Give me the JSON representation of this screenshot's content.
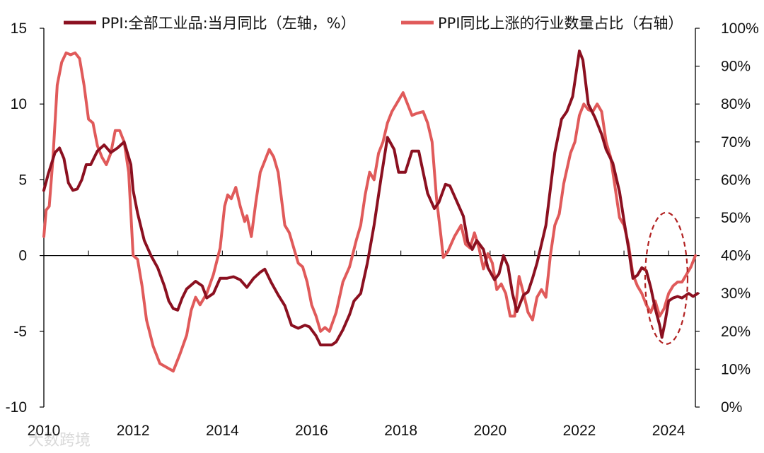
{
  "chart_data": {
    "type": "line",
    "title": "",
    "colors": {
      "series_a": "#8b1020",
      "series_b": "#e05a5a",
      "axis": "#000000",
      "ellipse": "#b22222"
    },
    "x_range": [
      2010,
      2024.6
    ],
    "x_ticks": [
      "2010",
      "2012",
      "2014",
      "2016",
      "2018",
      "2020",
      "2022",
      "2024"
    ],
    "y_left": {
      "range": [
        -10,
        15
      ],
      "ticks": [
        "15",
        "10",
        "5",
        "0",
        "-5",
        "-10"
      ]
    },
    "y_right": {
      "range": [
        0,
        100
      ],
      "ticks": [
        "100%",
        "90%",
        "80%",
        "70%",
        "60%",
        "50%",
        "40%",
        "30%",
        "20%",
        "10%",
        "0%"
      ]
    },
    "annotation": {
      "type": "dashed-ellipse",
      "center_x": 2023.95,
      "center_y_left": -1.5
    },
    "watermark": "大数跨境",
    "series": [
      {
        "name": "PPI:全部工业品:当月同比（左轴，%）",
        "axis": "left",
        "points": [
          [
            2010.0,
            4.3
          ],
          [
            2010.1,
            5.4
          ],
          [
            2010.25,
            6.8
          ],
          [
            2010.35,
            7.1
          ],
          [
            2010.45,
            6.4
          ],
          [
            2010.55,
            4.8
          ],
          [
            2010.65,
            4.3
          ],
          [
            2010.75,
            4.4
          ],
          [
            2010.85,
            5.0
          ],
          [
            2010.95,
            6.0
          ],
          [
            2011.05,
            6.0
          ],
          [
            2011.2,
            6.9
          ],
          [
            2011.35,
            7.3
          ],
          [
            2011.5,
            6.8
          ],
          [
            2011.65,
            7.1
          ],
          [
            2011.8,
            7.5
          ],
          [
            2011.95,
            6.0
          ],
          [
            2012.0,
            4.3
          ],
          [
            2012.1,
            2.8
          ],
          [
            2012.25,
            1.0
          ],
          [
            2012.4,
            0.0
          ],
          [
            2012.55,
            -0.8
          ],
          [
            2012.7,
            -2.0
          ],
          [
            2012.8,
            -3.0
          ],
          [
            2012.9,
            -3.5
          ],
          [
            2013.0,
            -3.6
          ],
          [
            2013.1,
            -2.8
          ],
          [
            2013.2,
            -2.2
          ],
          [
            2013.4,
            -1.7
          ],
          [
            2013.55,
            -2.0
          ],
          [
            2013.65,
            -2.8
          ],
          [
            2013.8,
            -2.5
          ],
          [
            2013.95,
            -1.5
          ],
          [
            2014.1,
            -1.5
          ],
          [
            2014.25,
            -1.4
          ],
          [
            2014.4,
            -1.6
          ],
          [
            2014.55,
            -2.1
          ],
          [
            2014.7,
            -1.5
          ],
          [
            2014.85,
            -1.1
          ],
          [
            2014.95,
            -0.9
          ],
          [
            2015.1,
            -1.8
          ],
          [
            2015.25,
            -2.6
          ],
          [
            2015.4,
            -3.3
          ],
          [
            2015.55,
            -4.6
          ],
          [
            2015.7,
            -4.8
          ],
          [
            2015.85,
            -4.6
          ],
          [
            2015.95,
            -4.7
          ],
          [
            2016.1,
            -5.3
          ],
          [
            2016.2,
            -5.9
          ],
          [
            2016.45,
            -5.9
          ],
          [
            2016.55,
            -5.7
          ],
          [
            2016.7,
            -4.9
          ],
          [
            2016.85,
            -3.9
          ],
          [
            2016.95,
            -3.0
          ],
          [
            2017.1,
            -2.5
          ],
          [
            2017.25,
            -0.5
          ],
          [
            2017.4,
            2.0
          ],
          [
            2017.55,
            5.0
          ],
          [
            2017.7,
            7.8
          ],
          [
            2017.85,
            7.0
          ],
          [
            2017.95,
            5.5
          ],
          [
            2018.1,
            5.5
          ],
          [
            2018.25,
            6.9
          ],
          [
            2018.4,
            6.9
          ],
          [
            2018.5,
            5.5
          ],
          [
            2018.6,
            4.1
          ],
          [
            2018.75,
            3.1
          ],
          [
            2018.85,
            3.5
          ],
          [
            2019.0,
            4.7
          ],
          [
            2019.1,
            4.6
          ],
          [
            2019.25,
            3.6
          ],
          [
            2019.4,
            2.6
          ],
          [
            2019.5,
            0.9
          ],
          [
            2019.6,
            0.4
          ],
          [
            2019.7,
            1.0
          ],
          [
            2019.85,
            0.4
          ],
          [
            2019.95,
            -0.8
          ],
          [
            2020.1,
            -1.6
          ],
          [
            2020.2,
            -1.2
          ],
          [
            2020.3,
            0.0
          ],
          [
            2020.4,
            -0.7
          ],
          [
            2020.5,
            -2.5
          ],
          [
            2020.6,
            -3.7
          ],
          [
            2020.75,
            -2.6
          ],
          [
            2020.85,
            -2.4
          ],
          [
            2020.95,
            -1.5
          ],
          [
            2021.05,
            -0.5
          ],
          [
            2021.25,
            2.0
          ],
          [
            2021.45,
            6.8
          ],
          [
            2021.6,
            9.0
          ],
          [
            2021.72,
            9.5
          ],
          [
            2021.85,
            10.5
          ],
          [
            2021.9,
            11.5
          ],
          [
            2022.0,
            13.5
          ],
          [
            2022.08,
            12.9
          ],
          [
            2022.2,
            10.0
          ],
          [
            2022.35,
            9.1
          ],
          [
            2022.5,
            8.0
          ],
          [
            2022.6,
            7.0
          ],
          [
            2022.75,
            6.1
          ],
          [
            2022.9,
            4.2
          ],
          [
            2023.0,
            2.3
          ],
          [
            2023.1,
            0.5
          ],
          [
            2023.2,
            -1.5
          ],
          [
            2023.3,
            -1.3
          ],
          [
            2023.4,
            -0.8
          ],
          [
            2023.5,
            -1.0
          ],
          [
            2023.6,
            -2.1
          ],
          [
            2023.7,
            -3.5
          ],
          [
            2023.8,
            -4.6
          ],
          [
            2023.85,
            -5.4
          ],
          [
            2023.92,
            -4.4
          ],
          [
            2024.0,
            -3.0
          ],
          [
            2024.1,
            -2.8
          ],
          [
            2024.2,
            -2.7
          ],
          [
            2024.3,
            -2.8
          ],
          [
            2024.45,
            -2.5
          ],
          [
            2024.55,
            -2.7
          ],
          [
            2024.65,
            -2.5
          ]
        ]
      },
      {
        "name": "PPI同比上涨的行业数量占比（右轴）",
        "axis": "right",
        "points": [
          [
            2010.0,
            45.0
          ],
          [
            2010.05,
            52.0
          ],
          [
            2010.12,
            53.0
          ],
          [
            2010.2,
            65.0
          ],
          [
            2010.3,
            85.0
          ],
          [
            2010.4,
            91.0
          ],
          [
            2010.5,
            93.5
          ],
          [
            2010.6,
            93.0
          ],
          [
            2010.7,
            93.5
          ],
          [
            2010.8,
            92.0
          ],
          [
            2010.9,
            85.0
          ],
          [
            2011.0,
            76.0
          ],
          [
            2011.1,
            75.0
          ],
          [
            2011.2,
            69.0
          ],
          [
            2011.3,
            66.0
          ],
          [
            2011.4,
            64.0
          ],
          [
            2011.5,
            67.0
          ],
          [
            2011.6,
            73.0
          ],
          [
            2011.7,
            73.0
          ],
          [
            2011.8,
            70.0
          ],
          [
            2011.9,
            62.0
          ],
          [
            2012.0,
            40.0
          ],
          [
            2012.1,
            39.0
          ],
          [
            2012.2,
            32.0
          ],
          [
            2012.3,
            23.0
          ],
          [
            2012.45,
            16.0
          ],
          [
            2012.6,
            11.5
          ],
          [
            2012.75,
            10.5
          ],
          [
            2012.9,
            9.5
          ],
          [
            2013.05,
            14.0
          ],
          [
            2013.2,
            19.0
          ],
          [
            2013.3,
            25.5
          ],
          [
            2013.4,
            29.0
          ],
          [
            2013.5,
            27.0
          ],
          [
            2013.65,
            30.0
          ],
          [
            2013.8,
            35.0
          ],
          [
            2013.95,
            42.0
          ],
          [
            2014.05,
            53.0
          ],
          [
            2014.12,
            56.0
          ],
          [
            2014.2,
            55.0
          ],
          [
            2014.3,
            58.0
          ],
          [
            2014.4,
            53.0
          ],
          [
            2014.5,
            49.0
          ],
          [
            2014.55,
            50.5
          ],
          [
            2014.65,
            45.0
          ],
          [
            2014.75,
            54.0
          ],
          [
            2014.85,
            62.0
          ],
          [
            2014.95,
            65.0
          ],
          [
            2015.05,
            68.0
          ],
          [
            2015.15,
            66.0
          ],
          [
            2015.25,
            62.0
          ],
          [
            2015.4,
            48.0
          ],
          [
            2015.5,
            46.0
          ],
          [
            2015.6,
            42.0
          ],
          [
            2015.7,
            38.0
          ],
          [
            2015.8,
            37.0
          ],
          [
            2015.9,
            33.0
          ],
          [
            2016.0,
            27.0
          ],
          [
            2016.1,
            24.0
          ],
          [
            2016.2,
            20.0
          ],
          [
            2016.3,
            21.0
          ],
          [
            2016.4,
            20.0
          ],
          [
            2016.55,
            25.0
          ],
          [
            2016.7,
            33.0
          ],
          [
            2016.85,
            37.0
          ],
          [
            2017.0,
            44.0
          ],
          [
            2017.1,
            48.0
          ],
          [
            2017.2,
            56.0
          ],
          [
            2017.3,
            62.0
          ],
          [
            2017.4,
            60.0
          ],
          [
            2017.5,
            67.0
          ],
          [
            2017.6,
            70.0
          ],
          [
            2017.7,
            75.0
          ],
          [
            2017.8,
            78.0
          ],
          [
            2017.95,
            81.0
          ],
          [
            2018.05,
            83.0
          ],
          [
            2018.15,
            80.0
          ],
          [
            2018.25,
            77.0
          ],
          [
            2018.35,
            77.5
          ],
          [
            2018.5,
            78.0
          ],
          [
            2018.6,
            75.0
          ],
          [
            2018.7,
            70.0
          ],
          [
            2018.8,
            55.0
          ],
          [
            2018.9,
            45.0
          ],
          [
            2018.95,
            39.5
          ],
          [
            2019.05,
            41.0
          ],
          [
            2019.2,
            45.0
          ],
          [
            2019.35,
            48.0
          ],
          [
            2019.45,
            43.0
          ],
          [
            2019.55,
            42.0
          ],
          [
            2019.65,
            46.0
          ],
          [
            2019.75,
            42.0
          ],
          [
            2019.85,
            36.5
          ],
          [
            2019.95,
            40.5
          ],
          [
            2020.05,
            38.0
          ],
          [
            2020.15,
            31.0
          ],
          [
            2020.25,
            32.5
          ],
          [
            2020.35,
            30.0
          ],
          [
            2020.45,
            24.0
          ],
          [
            2020.55,
            24.0
          ],
          [
            2020.65,
            34.5
          ],
          [
            2020.75,
            30.0
          ],
          [
            2020.85,
            25.0
          ],
          [
            2020.95,
            23.0
          ],
          [
            2021.05,
            29.0
          ],
          [
            2021.15,
            31.0
          ],
          [
            2021.25,
            29.0
          ],
          [
            2021.35,
            40.0
          ],
          [
            2021.45,
            48.0
          ],
          [
            2021.55,
            51.0
          ],
          [
            2021.65,
            59.0
          ],
          [
            2021.8,
            67.0
          ],
          [
            2021.9,
            70.0
          ],
          [
            2022.0,
            77.0
          ],
          [
            2022.1,
            80.0
          ],
          [
            2022.2,
            78.5
          ],
          [
            2022.3,
            78.0
          ],
          [
            2022.4,
            80.0
          ],
          [
            2022.5,
            78.0
          ],
          [
            2022.6,
            70.0
          ],
          [
            2022.7,
            66.0
          ],
          [
            2022.8,
            58.0
          ],
          [
            2022.9,
            50.0
          ],
          [
            2023.0,
            48.0
          ],
          [
            2023.1,
            43.0
          ],
          [
            2023.2,
            35.0
          ],
          [
            2023.3,
            32.0
          ],
          [
            2023.4,
            30.0
          ],
          [
            2023.5,
            27.0
          ],
          [
            2023.6,
            25.0
          ],
          [
            2023.7,
            28.0
          ],
          [
            2023.8,
            24.0
          ],
          [
            2023.9,
            26.0
          ],
          [
            2024.0,
            30.0
          ],
          [
            2024.1,
            32.0
          ],
          [
            2024.2,
            33.0
          ],
          [
            2024.3,
            33.0
          ],
          [
            2024.4,
            35.0
          ],
          [
            2024.5,
            37.0
          ],
          [
            2024.6,
            40.0
          ]
        ]
      }
    ]
  }
}
